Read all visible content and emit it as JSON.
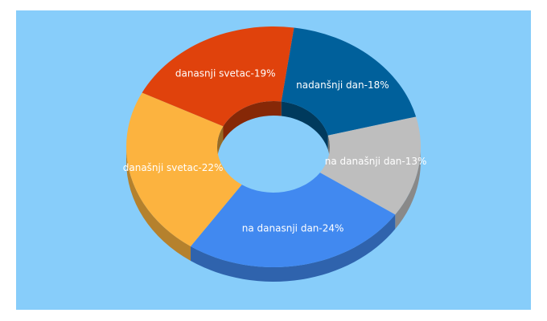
{
  "chart_data": {
    "type": "pie",
    "variant": "3d-donut",
    "background_color": "#87cdfa",
    "series": [
      {
        "label": "nadanšnji dan-18%",
        "value": 18,
        "color": "#00609b"
      },
      {
        "label": "na današnji dan-13%",
        "value": 13,
        "color": "#bebebe"
      },
      {
        "label": "na danasnji dan-24%",
        "value": 24,
        "color": "#4189f0"
      },
      {
        "label": "današnji svetac-22%",
        "value": 22,
        "color": "#fcb33f"
      },
      {
        "label": "danasnji svetac-19%",
        "value": 19,
        "color": "#e0420c"
      }
    ]
  }
}
